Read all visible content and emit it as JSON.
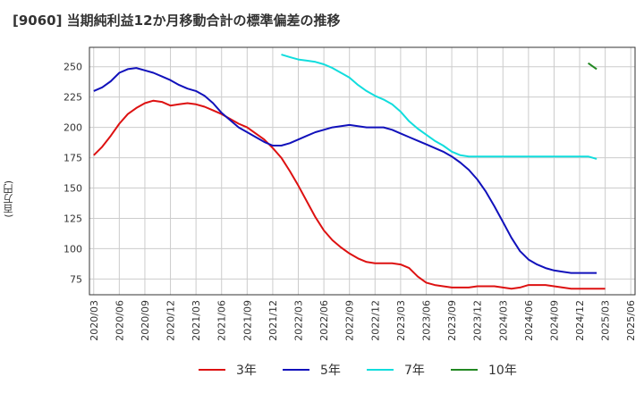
{
  "title": "[9060]  当期純利益12か月移動合計の標準偏差の推移",
  "chart_data": {
    "type": "line",
    "title": "[9060]  当期純利益12か月移動合計の標準偏差の推移",
    "ylabel": "(百万円)",
    "xlabel": "",
    "ylim": [
      62,
      266
    ],
    "yticks": [
      75,
      100,
      125,
      150,
      175,
      200,
      225,
      250
    ],
    "xtick_labels": [
      "2020/03",
      "2020/06",
      "2020/09",
      "2020/12",
      "2021/03",
      "2021/06",
      "2021/09",
      "2021/12",
      "2022/03",
      "2022/06",
      "2022/09",
      "2022/12",
      "2023/03",
      "2023/06",
      "2023/09",
      "2023/12",
      "2024/03",
      "2024/06",
      "2024/09",
      "2024/12",
      "2025/03",
      "2025/06"
    ],
    "grid": true,
    "legend_position": "bottom",
    "series": [
      {
        "name": "3年",
        "color": "#dd1111",
        "points": [
          [
            0,
            177
          ],
          [
            1,
            184
          ],
          [
            2,
            193
          ],
          [
            3,
            203
          ],
          [
            4,
            211
          ],
          [
            5,
            216
          ],
          [
            6,
            220
          ],
          [
            7,
            222
          ],
          [
            8,
            221
          ],
          [
            9,
            218
          ],
          [
            10,
            219
          ],
          [
            11,
            220
          ],
          [
            12,
            219
          ],
          [
            13,
            217
          ],
          [
            14,
            214
          ],
          [
            15,
            211
          ],
          [
            16,
            207
          ],
          [
            17,
            203
          ],
          [
            18,
            200
          ],
          [
            19,
            195
          ],
          [
            20,
            190
          ],
          [
            21,
            183
          ],
          [
            22,
            175
          ],
          [
            23,
            164
          ],
          [
            24,
            152
          ],
          [
            25,
            139
          ],
          [
            26,
            126
          ],
          [
            27,
            115
          ],
          [
            28,
            107
          ],
          [
            29,
            101
          ],
          [
            30,
            96
          ],
          [
            31,
            92
          ],
          [
            32,
            89
          ],
          [
            33,
            88
          ],
          [
            34,
            88
          ],
          [
            35,
            88
          ],
          [
            36,
            87
          ],
          [
            37,
            84
          ],
          [
            38,
            77
          ],
          [
            39,
            72
          ],
          [
            40,
            70
          ],
          [
            41,
            69
          ],
          [
            42,
            68
          ],
          [
            43,
            68
          ],
          [
            44,
            68
          ],
          [
            45,
            69
          ],
          [
            46,
            69
          ],
          [
            47,
            69
          ],
          [
            48,
            68
          ],
          [
            49,
            67
          ],
          [
            50,
            68
          ],
          [
            51,
            70
          ],
          [
            52,
            70
          ],
          [
            53,
            70
          ],
          [
            54,
            69
          ],
          [
            55,
            68
          ],
          [
            56,
            67
          ],
          [
            57,
            67
          ],
          [
            58,
            67
          ],
          [
            59,
            67
          ],
          [
            60,
            67
          ]
        ]
      },
      {
        "name": "5年",
        "color": "#1111bb",
        "points": [
          [
            0,
            230
          ],
          [
            1,
            233
          ],
          [
            2,
            238
          ],
          [
            3,
            245
          ],
          [
            4,
            248
          ],
          [
            5,
            249
          ],
          [
            6,
            247
          ],
          [
            7,
            245
          ],
          [
            8,
            242
          ],
          [
            9,
            239
          ],
          [
            10,
            235
          ],
          [
            11,
            232
          ],
          [
            12,
            230
          ],
          [
            13,
            226
          ],
          [
            14,
            220
          ],
          [
            15,
            212
          ],
          [
            16,
            206
          ],
          [
            17,
            200
          ],
          [
            18,
            196
          ],
          [
            19,
            192
          ],
          [
            20,
            188
          ],
          [
            21,
            185
          ],
          [
            22,
            185
          ],
          [
            23,
            187
          ],
          [
            24,
            190
          ],
          [
            25,
            193
          ],
          [
            26,
            196
          ],
          [
            27,
            198
          ],
          [
            28,
            200
          ],
          [
            29,
            201
          ],
          [
            30,
            202
          ],
          [
            31,
            201
          ],
          [
            32,
            200
          ],
          [
            33,
            200
          ],
          [
            34,
            200
          ],
          [
            35,
            198
          ],
          [
            36,
            195
          ],
          [
            37,
            192
          ],
          [
            38,
            189
          ],
          [
            39,
            186
          ],
          [
            40,
            183
          ],
          [
            41,
            180
          ],
          [
            42,
            176
          ],
          [
            43,
            171
          ],
          [
            44,
            165
          ],
          [
            45,
            157
          ],
          [
            46,
            147
          ],
          [
            47,
            135
          ],
          [
            48,
            122
          ],
          [
            49,
            109
          ],
          [
            50,
            98
          ],
          [
            51,
            91
          ],
          [
            52,
            87
          ],
          [
            53,
            84
          ],
          [
            54,
            82
          ],
          [
            55,
            81
          ],
          [
            56,
            80
          ],
          [
            57,
            80
          ],
          [
            58,
            80
          ],
          [
            59,
            80
          ]
        ]
      },
      {
        "name": "7年",
        "color": "#11dddd",
        "points": [
          [
            22,
            260
          ],
          [
            23,
            258
          ],
          [
            24,
            256
          ],
          [
            25,
            255
          ],
          [
            26,
            254
          ],
          [
            27,
            252
          ],
          [
            28,
            249
          ],
          [
            29,
            245
          ],
          [
            30,
            241
          ],
          [
            31,
            235
          ],
          [
            32,
            230
          ],
          [
            33,
            226
          ],
          [
            34,
            223
          ],
          [
            35,
            219
          ],
          [
            36,
            213
          ],
          [
            37,
            205
          ],
          [
            38,
            199
          ],
          [
            39,
            194
          ],
          [
            40,
            189
          ],
          [
            41,
            185
          ],
          [
            42,
            180
          ],
          [
            43,
            177
          ],
          [
            44,
            176
          ],
          [
            45,
            176
          ],
          [
            46,
            176
          ],
          [
            47,
            176
          ],
          [
            48,
            176
          ],
          [
            49,
            176
          ],
          [
            50,
            176
          ],
          [
            51,
            176
          ],
          [
            52,
            176
          ],
          [
            53,
            176
          ],
          [
            54,
            176
          ],
          [
            55,
            176
          ],
          [
            56,
            176
          ],
          [
            57,
            176
          ],
          [
            58,
            176
          ],
          [
            59,
            174
          ]
        ]
      },
      {
        "name": "10年",
        "color": "#228822",
        "points": [
          [
            58,
            253
          ],
          [
            59,
            248
          ]
        ]
      }
    ]
  }
}
